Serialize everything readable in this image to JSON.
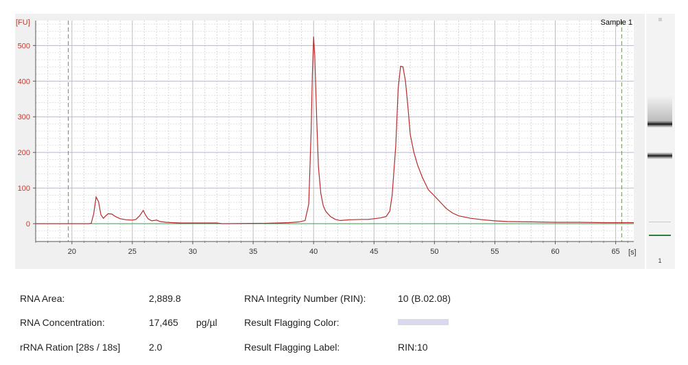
{
  "chart_data": {
    "type": "line",
    "sample_label": "Sample 1",
    "y_unit": "[FU]",
    "x_unit": "[s]",
    "xlim": [
      17,
      66.5
    ],
    "ylim": [
      -50,
      570
    ],
    "x_ticks": [
      20,
      25,
      30,
      35,
      40,
      45,
      50,
      55,
      60,
      65
    ],
    "y_ticks": [
      0,
      100,
      200,
      300,
      400,
      500
    ],
    "grid": true,
    "markers_x": [
      19.7,
      65.5
    ],
    "series": [
      {
        "color": "#b52a2a",
        "points": [
          [
            17.0,
            0
          ],
          [
            21.4,
            0
          ],
          [
            21.6,
            1
          ],
          [
            21.8,
            28
          ],
          [
            22.0,
            75
          ],
          [
            22.2,
            62
          ],
          [
            22.4,
            25
          ],
          [
            22.6,
            15
          ],
          [
            22.8,
            22
          ],
          [
            23.0,
            28
          ],
          [
            23.3,
            27
          ],
          [
            23.6,
            20
          ],
          [
            24.0,
            14
          ],
          [
            24.5,
            11
          ],
          [
            25.0,
            10
          ],
          [
            25.3,
            12
          ],
          [
            25.6,
            22
          ],
          [
            25.9,
            37
          ],
          [
            26.1,
            24
          ],
          [
            26.3,
            14
          ],
          [
            26.6,
            8
          ],
          [
            27.0,
            10
          ],
          [
            27.3,
            6
          ],
          [
            27.8,
            4
          ],
          [
            28.3,
            3
          ],
          [
            29.0,
            2
          ],
          [
            30.0,
            2
          ],
          [
            31.0,
            2
          ],
          [
            32.0,
            2
          ],
          [
            32.4,
            0
          ],
          [
            36.0,
            1
          ],
          [
            37.0,
            2
          ],
          [
            38.0,
            3
          ],
          [
            38.8,
            5
          ],
          [
            39.3,
            9
          ],
          [
            39.6,
            55
          ],
          [
            39.8,
            260
          ],
          [
            39.9,
            420
          ],
          [
            40.0,
            525
          ],
          [
            40.1,
            470
          ],
          [
            40.25,
            300
          ],
          [
            40.4,
            160
          ],
          [
            40.6,
            85
          ],
          [
            40.8,
            50
          ],
          [
            41.0,
            35
          ],
          [
            41.4,
            20
          ],
          [
            41.8,
            12
          ],
          [
            42.2,
            9
          ],
          [
            43.0,
            11
          ],
          [
            44.0,
            12
          ],
          [
            44.5,
            12
          ],
          [
            45.0,
            14
          ],
          [
            45.5,
            16
          ],
          [
            46.0,
            20
          ],
          [
            46.3,
            35
          ],
          [
            46.5,
            80
          ],
          [
            46.8,
            220
          ],
          [
            47.0,
            380
          ],
          [
            47.2,
            442
          ],
          [
            47.4,
            440
          ],
          [
            47.6,
            400
          ],
          [
            47.8,
            330
          ],
          [
            48.0,
            250
          ],
          [
            48.3,
            200
          ],
          [
            48.6,
            165
          ],
          [
            49.0,
            130
          ],
          [
            49.5,
            95
          ],
          [
            50.0,
            78
          ],
          [
            50.5,
            60
          ],
          [
            51.0,
            42
          ],
          [
            51.5,
            30
          ],
          [
            52.0,
            22
          ],
          [
            53.0,
            15
          ],
          [
            54.0,
            11
          ],
          [
            55.0,
            8
          ],
          [
            56.0,
            6
          ],
          [
            58.0,
            5
          ],
          [
            60.0,
            4
          ],
          [
            62.0,
            4
          ],
          [
            64.0,
            3
          ],
          [
            65.5,
            3
          ],
          [
            66.5,
            3
          ]
        ]
      }
    ]
  },
  "gel": {
    "label": "1",
    "bands_fu": [
      280,
      190
    ]
  },
  "metrics": {
    "rna_area_label": "RNA Area:",
    "rna_area_value": "2,889.8",
    "rna_conc_label": "RNA Concentration:",
    "rna_conc_value": "17,465",
    "rna_conc_unit": "pg/µl",
    "rrna_ratio_label": "rRNA Ration [28s / 18s]",
    "rrna_ratio_value": "2.0",
    "rin_label": "RNA Integrity Number (RIN):",
    "rin_value": "10  (B.02.08)",
    "flag_color_label": "Result Flagging Color:",
    "flag_color": "#d9d9ee",
    "flag_label_label": "Result Flagging Label:",
    "flag_label_value": "RIN:10"
  }
}
